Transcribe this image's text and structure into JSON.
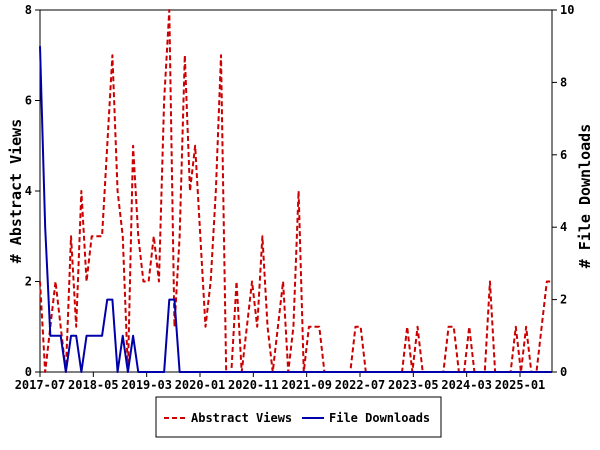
{
  "chart_data": {
    "type": "line",
    "x_start": "2017-07",
    "x_end": "2025-07",
    "x_tick_labels": [
      "2017-07",
      "2018-05",
      "2019-03",
      "2020-01",
      "2020-11",
      "2021-09",
      "2022-07",
      "2023-05",
      "2024-03",
      "2025-01"
    ],
    "y_left": {
      "label": "# Abstract Views",
      "ylim": [
        0,
        8
      ],
      "ticks": [
        "0",
        "2",
        "4",
        "6",
        "8"
      ]
    },
    "y_right": {
      "label": "# File Downloads",
      "ylim": [
        0,
        10
      ],
      "ticks": [
        "0",
        "2",
        "4",
        "6",
        "8",
        "10"
      ]
    },
    "legend_position": "bottom",
    "series": [
      {
        "name": "Abstract Views",
        "axis": "left",
        "color": "#cc0000",
        "style": "dashed",
        "values": [
          2,
          0,
          1,
          2,
          1,
          0,
          3,
          1,
          4,
          2,
          3,
          3,
          3,
          5,
          7,
          4,
          3,
          0,
          5,
          3,
          2,
          2,
          3,
          2,
          6,
          8,
          1,
          3,
          7,
          4,
          5,
          3,
          1,
          2,
          4,
          7,
          0,
          0,
          2,
          0,
          1,
          2,
          1,
          3,
          1,
          0,
          1,
          2,
          0,
          1,
          4,
          0,
          1,
          1,
          1,
          0,
          0,
          0,
          0,
          0,
          0,
          1,
          1,
          0,
          0,
          0,
          0,
          0,
          0,
          0,
          0,
          1,
          0,
          1,
          0,
          0,
          0,
          0,
          0,
          1,
          1,
          0,
          0,
          1,
          0,
          0,
          0,
          2,
          0,
          0,
          0,
          0,
          1,
          0,
          1,
          0,
          0,
          1,
          2,
          2
        ]
      },
      {
        "name": "File Downloads",
        "axis": "right",
        "color": "#0000aa",
        "style": "solid",
        "values": [
          9,
          4,
          1,
          1,
          1,
          0,
          1,
          1,
          0,
          1,
          1,
          1,
          1,
          2,
          2,
          0,
          1,
          0,
          1,
          0,
          0,
          0,
          0,
          0,
          0,
          2,
          2,
          0,
          0,
          0,
          0,
          0,
          0,
          0,
          0,
          0,
          0,
          0,
          0,
          0,
          0,
          0,
          0,
          0,
          0,
          0,
          0,
          0,
          0,
          0,
          0,
          0,
          0,
          0,
          0,
          0,
          0,
          0,
          0,
          0,
          0,
          0,
          0,
          0,
          0,
          0,
          0,
          0,
          0,
          0,
          0,
          0,
          0,
          0,
          0,
          0,
          0,
          0,
          0,
          0,
          0,
          0,
          0,
          0,
          0,
          0,
          0,
          0,
          0,
          0,
          0,
          0,
          0,
          0,
          0,
          0,
          0,
          0,
          0,
          0
        ]
      }
    ]
  }
}
